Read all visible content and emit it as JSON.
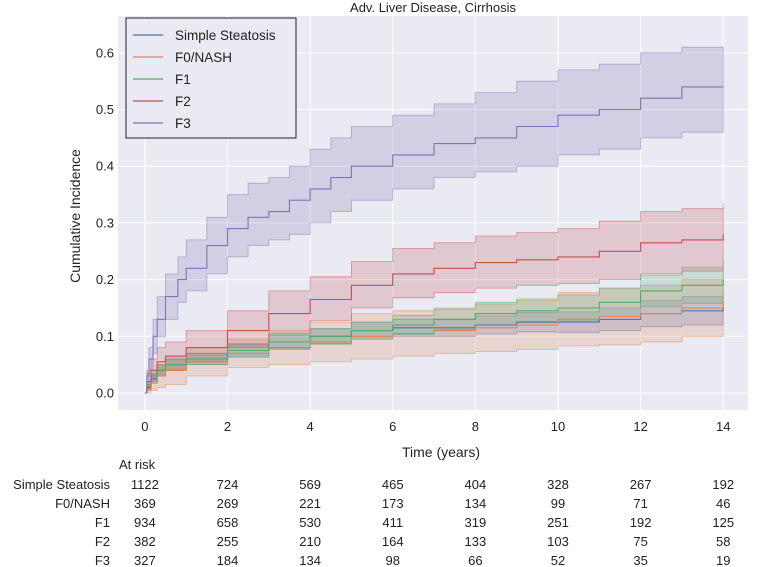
{
  "chart_data": {
    "type": "line",
    "title": "Adv. Liver Disease, Cirrhosis",
    "xlabel": "Time (years)",
    "ylabel": "Cumulative Incidence",
    "xlim": [
      -0.65,
      14.6
    ],
    "ylim": [
      -0.03,
      0.665
    ],
    "xticks": [
      0,
      2,
      4,
      6,
      8,
      10,
      12,
      14
    ],
    "yticks": [
      0.0,
      0.1,
      0.2,
      0.3,
      0.4,
      0.5,
      0.6
    ],
    "grid": true,
    "legend_position": "top-left",
    "series": [
      {
        "name": "Simple Steatosis",
        "color": "#4c72b0",
        "x": [
          0,
          0.05,
          0.15,
          0.3,
          0.5,
          1,
          2,
          3,
          4,
          5,
          6,
          7,
          8,
          9,
          10,
          11,
          12,
          13,
          14
        ],
        "y": [
          0,
          0.01,
          0.025,
          0.04,
          0.05,
          0.06,
          0.075,
          0.09,
          0.1,
          0.11,
          0.115,
          0.115,
          0.12,
          0.125,
          0.125,
          0.13,
          0.14,
          0.145,
          0.15
        ],
        "lower": [
          0,
          0.005,
          0.017,
          0.03,
          0.04,
          0.05,
          0.065,
          0.078,
          0.087,
          0.095,
          0.1,
          0.1,
          0.104,
          0.108,
          0.107,
          0.11,
          0.117,
          0.12,
          0.122
        ],
        "upper": [
          0,
          0.015,
          0.033,
          0.05,
          0.06,
          0.07,
          0.085,
          0.102,
          0.113,
          0.125,
          0.13,
          0.13,
          0.136,
          0.142,
          0.143,
          0.15,
          0.163,
          0.17,
          0.178
        ]
      },
      {
        "name": "F0/NASH",
        "color": "#dd8452",
        "x": [
          0,
          0.05,
          0.15,
          0.3,
          0.5,
          1,
          2,
          3,
          4,
          5,
          6,
          7,
          8,
          9,
          10,
          11,
          12,
          13,
          14
        ],
        "y": [
          0,
          0.008,
          0.02,
          0.03,
          0.04,
          0.055,
          0.07,
          0.08,
          0.09,
          0.1,
          0.105,
          0.11,
          0.115,
          0.12,
          0.13,
          0.135,
          0.14,
          0.15,
          0.16
        ],
        "lower": [
          0,
          0.001,
          0.005,
          0.01,
          0.015,
          0.03,
          0.045,
          0.05,
          0.055,
          0.06,
          0.065,
          0.07,
          0.073,
          0.077,
          0.083,
          0.085,
          0.09,
          0.1,
          0.105
        ],
        "upper": [
          0,
          0.015,
          0.035,
          0.05,
          0.065,
          0.08,
          0.095,
          0.11,
          0.125,
          0.14,
          0.145,
          0.15,
          0.157,
          0.163,
          0.177,
          0.185,
          0.19,
          0.2,
          0.215
        ]
      },
      {
        "name": "F1",
        "color": "#55a868",
        "x": [
          0,
          0.05,
          0.15,
          0.3,
          0.5,
          1,
          2,
          3,
          4,
          5,
          6,
          7,
          8,
          9,
          10,
          11,
          12,
          13,
          14
        ],
        "y": [
          0,
          0.012,
          0.03,
          0.04,
          0.05,
          0.06,
          0.075,
          0.09,
          0.1,
          0.11,
          0.12,
          0.13,
          0.14,
          0.145,
          0.15,
          0.16,
          0.18,
          0.19,
          0.2
        ],
        "lower": [
          0,
          0.006,
          0.02,
          0.03,
          0.04,
          0.05,
          0.063,
          0.077,
          0.086,
          0.095,
          0.103,
          0.112,
          0.12,
          0.124,
          0.127,
          0.135,
          0.152,
          0.158,
          0.166
        ],
        "upper": [
          0,
          0.018,
          0.04,
          0.05,
          0.06,
          0.07,
          0.087,
          0.103,
          0.114,
          0.125,
          0.137,
          0.148,
          0.16,
          0.166,
          0.173,
          0.185,
          0.208,
          0.222,
          0.234
        ]
      },
      {
        "name": "F2",
        "color": "#c44e52",
        "x": [
          0,
          0.05,
          0.15,
          0.3,
          0.5,
          1,
          2,
          3,
          4,
          5,
          6,
          7,
          8,
          9,
          10,
          11,
          12,
          13,
          14
        ],
        "y": [
          0,
          0.02,
          0.04,
          0.055,
          0.065,
          0.08,
          0.11,
          0.14,
          0.165,
          0.19,
          0.21,
          0.22,
          0.23,
          0.235,
          0.24,
          0.25,
          0.265,
          0.27,
          0.28
        ],
        "lower": [
          0,
          0.01,
          0.02,
          0.03,
          0.04,
          0.055,
          0.08,
          0.105,
          0.128,
          0.15,
          0.168,
          0.177,
          0.185,
          0.19,
          0.193,
          0.2,
          0.21,
          0.215,
          0.223
        ],
        "upper": [
          0,
          0.035,
          0.06,
          0.08,
          0.09,
          0.11,
          0.145,
          0.18,
          0.205,
          0.232,
          0.255,
          0.265,
          0.277,
          0.283,
          0.29,
          0.303,
          0.32,
          0.325,
          0.335
        ]
      },
      {
        "name": "F3",
        "color": "#8172b2",
        "x": [
          0,
          0.05,
          0.1,
          0.2,
          0.3,
          0.5,
          0.8,
          1,
          1.5,
          2,
          2.5,
          3,
          3.5,
          4,
          4.5,
          5,
          6,
          7,
          8,
          9,
          10,
          11,
          12,
          13,
          14
        ],
        "y": [
          0,
          0.03,
          0.06,
          0.1,
          0.13,
          0.17,
          0.2,
          0.22,
          0.26,
          0.29,
          0.31,
          0.32,
          0.34,
          0.36,
          0.38,
          0.4,
          0.42,
          0.44,
          0.45,
          0.47,
          0.49,
          0.5,
          0.52,
          0.54,
          0.54
        ],
        "lower": [
          0,
          0.02,
          0.04,
          0.07,
          0.1,
          0.13,
          0.16,
          0.18,
          0.21,
          0.24,
          0.26,
          0.27,
          0.28,
          0.3,
          0.32,
          0.34,
          0.36,
          0.38,
          0.39,
          0.4,
          0.42,
          0.43,
          0.45,
          0.46,
          0.47
        ],
        "upper": [
          0,
          0.04,
          0.08,
          0.13,
          0.17,
          0.21,
          0.24,
          0.27,
          0.31,
          0.35,
          0.37,
          0.38,
          0.4,
          0.43,
          0.45,
          0.47,
          0.49,
          0.51,
          0.53,
          0.55,
          0.57,
          0.58,
          0.6,
          0.61,
          0.61
        ]
      }
    ],
    "at_risk": {
      "label": "At risk",
      "times": [
        0,
        2,
        4,
        6,
        8,
        10,
        12,
        14
      ],
      "rows": [
        {
          "name": "Simple Steatosis",
          "values": [
            1122,
            724,
            569,
            465,
            404,
            328,
            267,
            192
          ]
        },
        {
          "name": "F0/NASH",
          "values": [
            369,
            269,
            221,
            173,
            134,
            99,
            71,
            46
          ]
        },
        {
          "name": "F1",
          "values": [
            934,
            658,
            530,
            411,
            319,
            251,
            192,
            125
          ]
        },
        {
          "name": "F2",
          "values": [
            382,
            255,
            210,
            164,
            133,
            103,
            75,
            58
          ]
        },
        {
          "name": "F3",
          "values": [
            327,
            184,
            134,
            98,
            66,
            52,
            35,
            19
          ]
        }
      ]
    }
  }
}
